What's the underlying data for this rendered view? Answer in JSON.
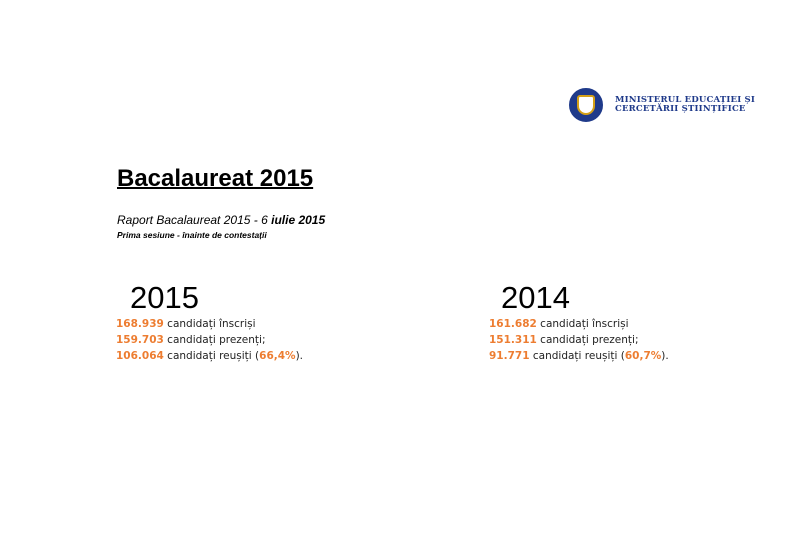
{
  "header": {
    "org_line1": "MINISTERUL EDUCAȚIEI ȘI",
    "org_line2": "CERCETĂRII ȘTIINȚIFICE",
    "logo_icon": "coat-of-arms-seal"
  },
  "title": "Bacalaureat 2015",
  "subtitle_main": "Raport Bacalaureat 2015 - 6 ",
  "subtitle_date": "iulie 2015",
  "subtitle2": "Prima sesiune - înainte de contestații",
  "accent_color": "#ed7d31",
  "columns": [
    {
      "year": "2015",
      "rows": [
        {
          "num": "168.939",
          "text": " candidați  înscriși"
        },
        {
          "num": "159.703",
          "text": " candidați prezenți;"
        },
        {
          "num": "106.064",
          "text": " candidați reușiți (",
          "pct": "66,4%",
          "end": ")."
        }
      ]
    },
    {
      "year": "2014",
      "rows": [
        {
          "num": "161.682",
          "text": " candidați  înscriși"
        },
        {
          "num": "151.311",
          "text": " candidați prezenți;"
        },
        {
          "num": "91.771",
          "text": " candidați reușiți (",
          "pct": "60,7%",
          "end": ")."
        }
      ]
    }
  ]
}
